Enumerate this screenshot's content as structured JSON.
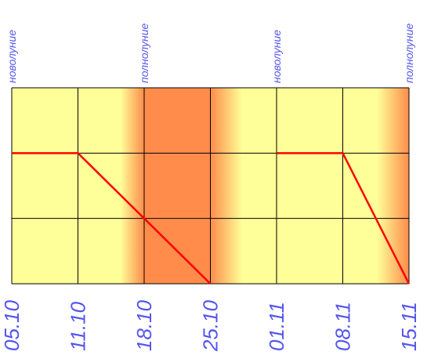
{
  "chart_data": {
    "type": "line",
    "title": "",
    "xlabel": "",
    "ylabel": "",
    "x_ticks": [
      "05.10",
      "11.10",
      "18.10",
      "25.10",
      "01.11",
      "08.11",
      "15.11"
    ],
    "ylim": [
      0,
      3
    ],
    "grid": true,
    "moon_phases": [
      {
        "label": "новолуние",
        "x": "05.10"
      },
      {
        "label": "полнолуние",
        "x": "18.10"
      },
      {
        "label": "новолуние",
        "x": "01.11"
      },
      {
        "label": "полнолуние",
        "x": "15.11"
      }
    ],
    "series": [
      {
        "color": "#ff0000",
        "points": [
          {
            "x": "05.10",
            "y": 2
          },
          {
            "x": "11.10",
            "y": 2
          },
          {
            "x": "25.10",
            "y": 0
          },
          {
            "x": "01.11",
            "y": 2
          },
          {
            "x": "08.11",
            "y": 2
          },
          {
            "x": "15.11",
            "y": 0
          }
        ],
        "breaks_after": [
          2
        ]
      }
    ],
    "bands": [
      {
        "from": "18.10",
        "to": "25.10",
        "fade_in": 0.36,
        "fade_out": 0.48
      },
      {
        "from": "15.11",
        "to": "15.11",
        "fade_in": 0.48,
        "fade_out": 0
      }
    ],
    "colors": {
      "background": "#ffff99",
      "band": "#ff8c4a",
      "grid": "#000000",
      "line": "#ff0000",
      "label": "#5555ee"
    }
  }
}
